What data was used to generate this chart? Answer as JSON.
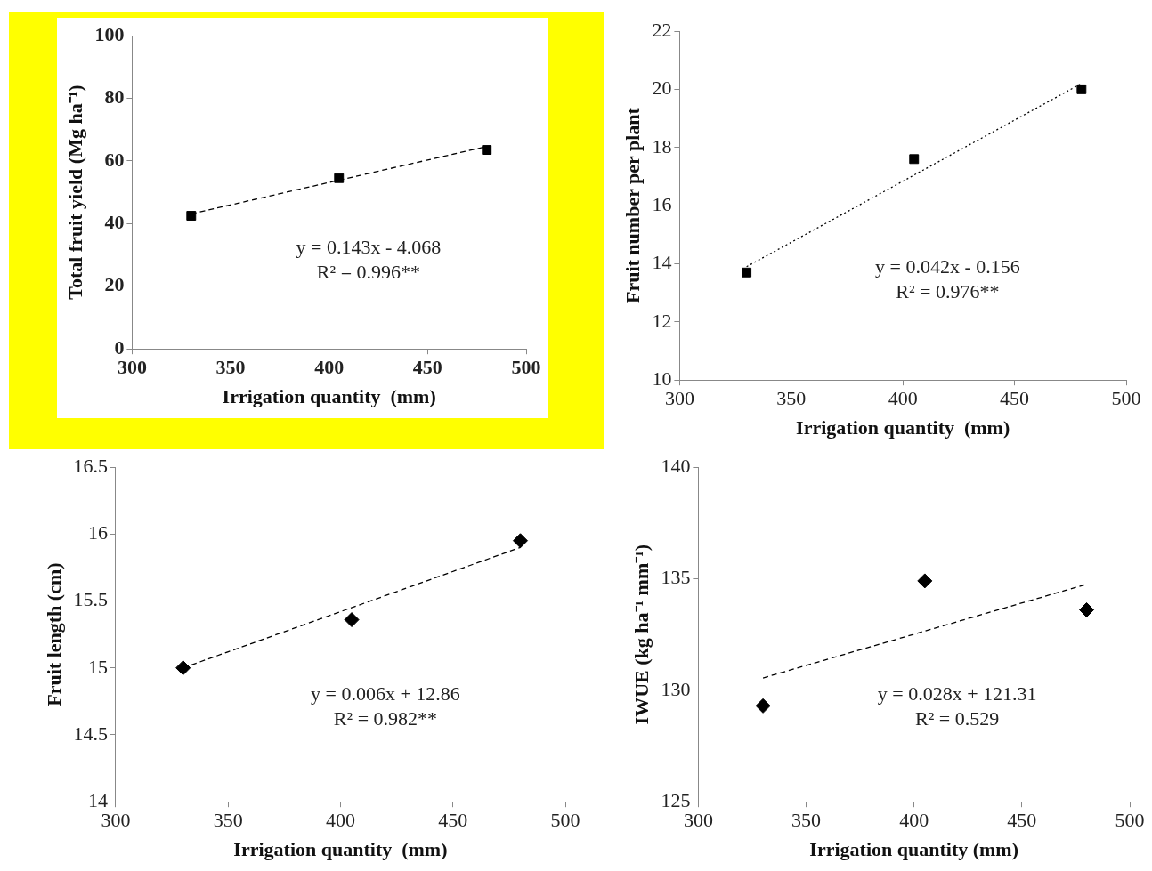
{
  "chart_data": [
    {
      "type": "scatter",
      "xlabel": "Irrigation quantity  (mm)",
      "ylabel": "Total fruit yield (Mg ha⁻¹)",
      "xlim": [
        300,
        500
      ],
      "xticks": [
        300,
        350,
        400,
        450,
        500
      ],
      "ylim": [
        0,
        100
      ],
      "yticks": [
        0,
        20,
        40,
        60,
        80,
        100
      ],
      "grid": false,
      "legend": false,
      "series": [
        {
          "type": "scatter",
          "x": [
            330,
            405,
            480
          ],
          "values": [
            42.5,
            54.5,
            63.5
          ],
          "color": "#000000",
          "marker": "square"
        },
        {
          "type": "line",
          "x": [
            330,
            480
          ],
          "values": [
            43.1,
            64.6
          ],
          "color": "#000000",
          "marker": "none",
          "line_style": "dashed"
        }
      ],
      "annotations": [
        "y = 0.143x - 4.068",
        "R² = 0.996**"
      ]
    },
    {
      "type": "scatter",
      "xlabel": "Irrigation quantity  (mm)",
      "ylabel": "Fruit number per plant",
      "xlim": [
        300,
        500
      ],
      "xticks": [
        300,
        350,
        400,
        450,
        500
      ],
      "ylim": [
        10,
        22
      ],
      "yticks": [
        10,
        12,
        14,
        16,
        18,
        20,
        22
      ],
      "grid": false,
      "legend": false,
      "series": [
        {
          "type": "scatter",
          "x": [
            330,
            405,
            480
          ],
          "values": [
            13.7,
            17.6,
            20.0
          ],
          "color": "#000000",
          "marker": "square"
        },
        {
          "type": "line",
          "x": [
            330,
            480
          ],
          "values": [
            13.9,
            20.2
          ],
          "color": "#000000",
          "marker": "none",
          "line_style": "dotted"
        }
      ],
      "annotations": [
        "y = 0.042x - 0.156",
        "R² = 0.976**"
      ]
    },
    {
      "type": "scatter",
      "xlabel": "Irrigation quantity  (mm)",
      "ylabel": "Fruit length (cm)",
      "xlim": [
        300,
        500
      ],
      "xticks": [
        300,
        350,
        400,
        450,
        500
      ],
      "ylim": [
        14,
        16.5
      ],
      "yticks": [
        14,
        14.5,
        15,
        15.5,
        16,
        16.5
      ],
      "grid": false,
      "legend": false,
      "series": [
        {
          "type": "scatter",
          "x": [
            330,
            405,
            480
          ],
          "values": [
            15.0,
            15.36,
            15.95
          ],
          "color": "#000000",
          "marker": "diamond"
        },
        {
          "type": "line",
          "x": [
            330,
            480
          ],
          "values": [
            15.0,
            15.9
          ],
          "color": "#000000",
          "marker": "none",
          "line_style": "dashed"
        }
      ],
      "annotations": [
        "y = 0.006x + 12.86",
        "R² = 0.982**"
      ]
    },
    {
      "type": "scatter",
      "xlabel": "Irrigation quantity (mm)",
      "ylabel": "IWUE (kg ha⁻¹ mm⁻¹)",
      "xlim": [
        300,
        500
      ],
      "xticks": [
        300,
        350,
        400,
        450,
        500
      ],
      "ylim": [
        125,
        140
      ],
      "yticks": [
        125,
        130,
        135,
        140
      ],
      "grid": false,
      "legend": false,
      "series": [
        {
          "type": "scatter",
          "x": [
            330,
            405,
            480
          ],
          "values": [
            129.3,
            134.9,
            133.6
          ],
          "color": "#000000",
          "marker": "diamond"
        },
        {
          "type": "line",
          "x": [
            330,
            480
          ],
          "values": [
            130.55,
            134.75
          ],
          "color": "#000000",
          "marker": "none",
          "line_style": "dashed"
        }
      ],
      "annotations": [
        "y = 0.028x + 121.31",
        "R² = 0.529"
      ]
    }
  ]
}
